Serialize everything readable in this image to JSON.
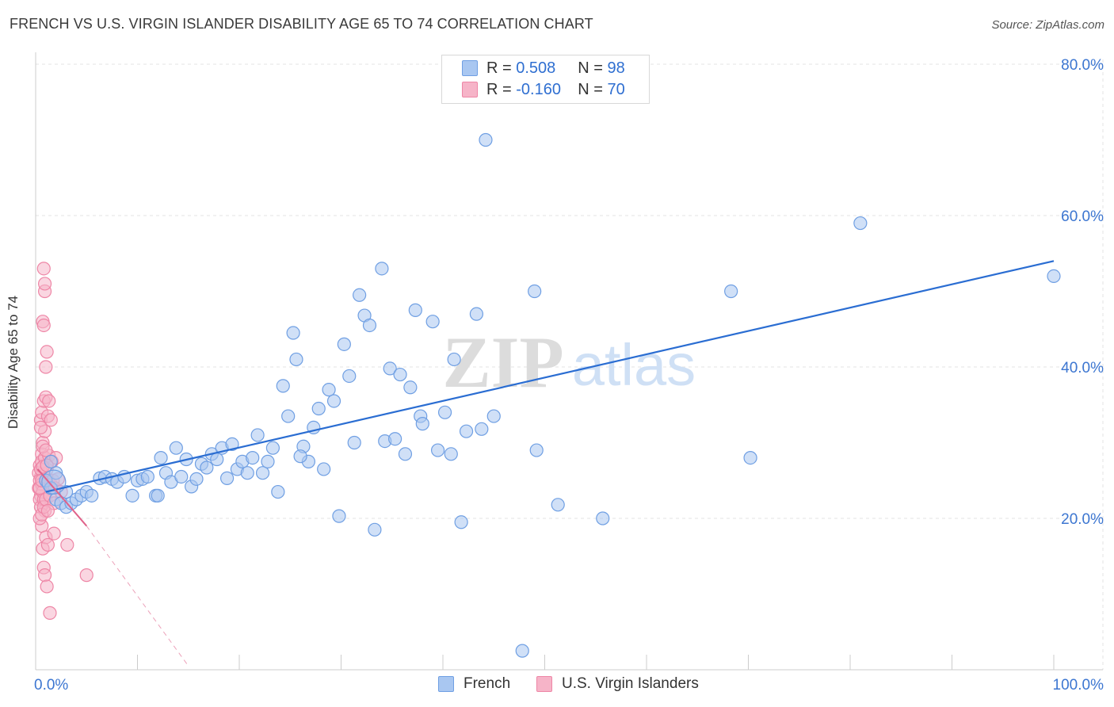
{
  "title": "FRENCH VS U.S. VIRGIN ISLANDER DISABILITY AGE 65 TO 74 CORRELATION CHART",
  "source": "Source: ZipAtlas.com",
  "watermark": {
    "zip": "ZIP",
    "atlas": "atlas"
  },
  "legend": {
    "rows": [
      {
        "r_label": "R = ",
        "r_value": "0.508",
        "n_label": "N = ",
        "n_value": "98"
      },
      {
        "r_label": "R = ",
        "r_value": "-0.160",
        "n_label": "N = ",
        "n_value": "70"
      }
    ]
  },
  "colors": {
    "french_fill": "#a9c7f1",
    "french_stroke": "#6f9fe3",
    "french_line": "#2a6dd2",
    "usvi_fill": "#f6b4c8",
    "usvi_stroke": "#ee86a6",
    "usvi_line": "#e0628a",
    "grid": "#e3e3e3",
    "axis_text": "#3c76d1"
  },
  "chart_data": {
    "type": "scatter",
    "title": "FRENCH VS U.S. VIRGIN ISLANDER DISABILITY AGE 65 TO 74 CORRELATION CHART",
    "xlabel": "",
    "ylabel": "Disability Age 65 to 74",
    "xlim": [
      0,
      100
    ],
    "ylim": [
      0,
      82
    ],
    "x_tick_labels": [
      "0.0%",
      "100.0%"
    ],
    "y_ticks": [
      20,
      40,
      60,
      80
    ],
    "y_tick_labels": [
      "20.0%",
      "40.0%",
      "60.0%",
      "80.0%"
    ],
    "legend_position": "bottom-center",
    "series": [
      {
        "name": "French",
        "r": 0.508,
        "n": 98,
        "trend": {
          "x": [
            1.0,
            100.0
          ],
          "y": [
            23.5,
            54.0
          ]
        },
        "points": [
          [
            1.0,
            25.0
          ],
          [
            1.5,
            24.0
          ],
          [
            2.0,
            22.5
          ],
          [
            2.5,
            22.0
          ],
          [
            3.0,
            21.5
          ],
          [
            3.5,
            22.0
          ],
          [
            4.0,
            22.5
          ],
          [
            4.5,
            23.0
          ],
          [
            5.0,
            23.5
          ],
          [
            5.5,
            23.0
          ],
          [
            6.3,
            25.3
          ],
          [
            6.8,
            25.5
          ],
          [
            7.5,
            25.2
          ],
          [
            8.0,
            24.8
          ],
          [
            8.7,
            25.5
          ],
          [
            9.5,
            23.0
          ],
          [
            10.0,
            25.0
          ],
          [
            10.5,
            25.2
          ],
          [
            11.0,
            25.5
          ],
          [
            11.8,
            23.0
          ],
          [
            12.3,
            28.0
          ],
          [
            12.8,
            26.0
          ],
          [
            13.3,
            24.8
          ],
          [
            13.8,
            29.3
          ],
          [
            14.3,
            25.5
          ],
          [
            14.8,
            27.8
          ],
          [
            15.3,
            24.2
          ],
          [
            15.8,
            25.2
          ],
          [
            16.3,
            27.2
          ],
          [
            16.8,
            26.7
          ],
          [
            17.3,
            28.5
          ],
          [
            17.8,
            27.8
          ],
          [
            18.3,
            29.3
          ],
          [
            18.8,
            25.3
          ],
          [
            19.3,
            29.8
          ],
          [
            19.8,
            26.5
          ],
          [
            20.3,
            27.5
          ],
          [
            20.8,
            26.0
          ],
          [
            21.3,
            28.0
          ],
          [
            21.8,
            31.0
          ],
          [
            22.3,
            26.0
          ],
          [
            22.8,
            27.5
          ],
          [
            23.3,
            29.3
          ],
          [
            23.8,
            23.5
          ],
          [
            24.8,
            33.5
          ],
          [
            25.3,
            44.5
          ],
          [
            25.6,
            41.0
          ],
          [
            24.3,
            37.5
          ],
          [
            26.3,
            29.5
          ],
          [
            26.8,
            27.5
          ],
          [
            27.3,
            32.0
          ],
          [
            27.8,
            34.5
          ],
          [
            28.3,
            26.5
          ],
          [
            28.8,
            37.0
          ],
          [
            29.3,
            35.5
          ],
          [
            29.8,
            20.3
          ],
          [
            30.3,
            43.0
          ],
          [
            30.8,
            38.8
          ],
          [
            31.3,
            30.0
          ],
          [
            31.8,
            49.5
          ],
          [
            32.3,
            46.8
          ],
          [
            32.8,
            45.5
          ],
          [
            33.3,
            18.5
          ],
          [
            34.0,
            53.0
          ],
          [
            34.3,
            30.2
          ],
          [
            34.8,
            39.8
          ],
          [
            35.3,
            30.5
          ],
          [
            35.8,
            39.0
          ],
          [
            36.3,
            28.5
          ],
          [
            36.8,
            37.3
          ],
          [
            37.3,
            47.5
          ],
          [
            37.8,
            33.5
          ],
          [
            38.0,
            32.5
          ],
          [
            39.0,
            46.0
          ],
          [
            39.5,
            29.0
          ],
          [
            40.2,
            34.0
          ],
          [
            40.8,
            28.5
          ],
          [
            41.1,
            41.0
          ],
          [
            41.8,
            19.5
          ],
          [
            42.3,
            31.5
          ],
          [
            43.3,
            47.0
          ],
          [
            43.8,
            31.8
          ],
          [
            44.2,
            70.0
          ],
          [
            45.0,
            33.5
          ],
          [
            47.8,
            2.5
          ],
          [
            49.0,
            50.0
          ],
          [
            49.2,
            29.0
          ],
          [
            51.3,
            21.8
          ],
          [
            55.7,
            20.0
          ],
          [
            68.3,
            50.0
          ],
          [
            70.2,
            28.0
          ],
          [
            81.0,
            59.0
          ],
          [
            100.0,
            52.0
          ],
          [
            26.0,
            28.2
          ],
          [
            12.0,
            23.0
          ],
          [
            3.0,
            23.5
          ],
          [
            2.0,
            26.0
          ],
          [
            1.5,
            27.5
          ]
        ]
      },
      {
        "name": "U.S. Virgin Islanders",
        "r": -0.16,
        "n": 70,
        "trend": {
          "x": [
            0.2,
            5.0
          ],
          "y": [
            26.5,
            19.0
          ]
        },
        "trend_extension": {
          "x": [
            5.0,
            15.0
          ],
          "y": [
            19.0,
            0.5
          ]
        },
        "points": [
          [
            0.3,
            24.0
          ],
          [
            0.5,
            25.5
          ],
          [
            0.7,
            26.0
          ],
          [
            0.4,
            27.0
          ],
          [
            0.6,
            28.5
          ],
          [
            0.8,
            22.0
          ],
          [
            0.5,
            23.0
          ],
          [
            0.9,
            21.0
          ],
          [
            0.6,
            19.0
          ],
          [
            1.0,
            25.0
          ],
          [
            1.1,
            26.5
          ],
          [
            0.7,
            30.0
          ],
          [
            0.9,
            31.5
          ],
          [
            0.5,
            33.0
          ],
          [
            0.6,
            34.0
          ],
          [
            1.2,
            33.5
          ],
          [
            0.8,
            35.5
          ],
          [
            1.0,
            36.0
          ],
          [
            1.3,
            35.5
          ],
          [
            1.5,
            33.0
          ],
          [
            1.0,
            40.0
          ],
          [
            1.1,
            42.0
          ],
          [
            0.7,
            46.0
          ],
          [
            0.8,
            45.5
          ],
          [
            0.9,
            50.0
          ],
          [
            0.8,
            53.0
          ],
          [
            0.9,
            51.0
          ],
          [
            0.8,
            13.5
          ],
          [
            0.9,
            12.5
          ],
          [
            1.1,
            11.0
          ],
          [
            1.4,
            7.5
          ],
          [
            0.7,
            16.0
          ],
          [
            1.0,
            17.5
          ],
          [
            1.2,
            16.5
          ],
          [
            1.8,
            18.0
          ],
          [
            3.1,
            16.5
          ],
          [
            5.0,
            12.5
          ],
          [
            0.4,
            22.5
          ],
          [
            0.5,
            21.5
          ],
          [
            0.3,
            26.0
          ],
          [
            0.4,
            25.0
          ],
          [
            0.6,
            24.5
          ],
          [
            0.7,
            23.5
          ],
          [
            0.8,
            22.5
          ],
          [
            1.2,
            25.0
          ],
          [
            1.5,
            24.5
          ],
          [
            1.7,
            25.0
          ],
          [
            1.9,
            24.0
          ],
          [
            2.2,
            25.2
          ],
          [
            0.6,
            27.5
          ],
          [
            0.9,
            28.0
          ],
          [
            1.3,
            28.3
          ],
          [
            1.6,
            27.5
          ],
          [
            2.0,
            28.0
          ],
          [
            0.5,
            32.0
          ],
          [
            0.7,
            29.5
          ],
          [
            1.0,
            29.0
          ],
          [
            0.4,
            20.0
          ],
          [
            0.6,
            20.5
          ],
          [
            0.8,
            21.5
          ],
          [
            1.0,
            22.5
          ],
          [
            0.5,
            26.5
          ],
          [
            0.7,
            26.8
          ],
          [
            1.1,
            27.0
          ],
          [
            0.4,
            24.0
          ],
          [
            0.6,
            25.0
          ],
          [
            1.4,
            23.0
          ],
          [
            1.8,
            22.0
          ],
          [
            2.5,
            23.5
          ],
          [
            1.2,
            21.0
          ]
        ]
      }
    ]
  },
  "bottom_legend": [
    {
      "label": "French"
    },
    {
      "label": "U.S. Virgin Islanders"
    }
  ]
}
